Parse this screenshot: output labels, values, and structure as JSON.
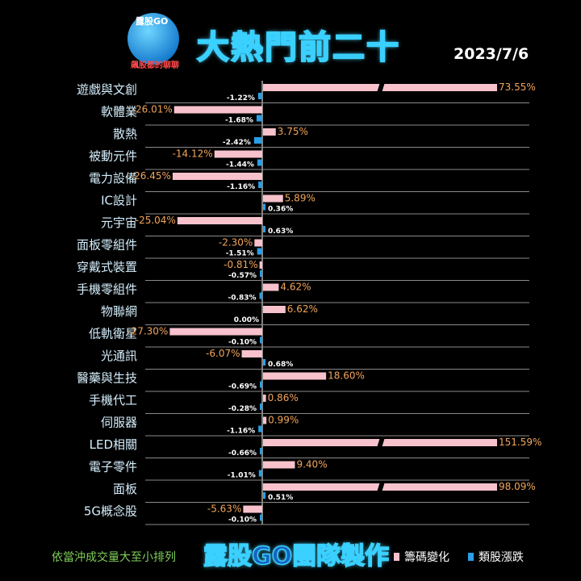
{
  "logo": {
    "top_text": "露股GO",
    "bottom_text": "飆股都的聊聊"
  },
  "title": "大熱門前二十",
  "date": "2023/7/6",
  "footer": {
    "note": "依當沖成交量大至小排列",
    "brand": "露股GO團隊製作"
  },
  "colors": {
    "chip": "#f7c2cc",
    "stock": "#2a9fe6",
    "chip_label": "#f2a55a",
    "category_label": "#d4eefc"
  },
  "chart_data": {
    "type": "bar",
    "categories": [
      "遊戲與文創",
      "軟體業",
      "散熱",
      "被動元件",
      "電力設備",
      "IC設計",
      "元宇宙",
      "面板零組件",
      "穿戴式裝置",
      "手機零組件",
      "物聯網",
      "低軌衛星",
      "光通訊",
      "醫藥與生技",
      "手機代工",
      "伺服器",
      "LED相關",
      "電子零件",
      "面板",
      "5G概念股"
    ],
    "series": [
      {
        "name": "籌碼變化",
        "values": [
          73.55,
          -26.01,
          3.75,
          -14.12,
          -26.45,
          5.89,
          -25.04,
          -2.3,
          -0.81,
          4.62,
          6.62,
          -27.3,
          -6.07,
          18.6,
          0.86,
          0.99,
          151.59,
          9.4,
          98.09,
          -5.63
        ],
        "labels": [
          "73.55%",
          "-26.01%",
          "3.75%",
          "-14.12%",
          "-26.45%",
          "5.89%",
          "-25.04%",
          "-2.30%",
          "-0.81%",
          "4.62%",
          "6.62%",
          "-27.30%",
          "-6.07%",
          "18.60%",
          "0.86%",
          "0.99%",
          "151.59%",
          "9.40%",
          "98.09%",
          "-5.63%"
        ]
      },
      {
        "name": "類股漲跌",
        "values": [
          -1.22,
          -1.68,
          -2.42,
          -1.44,
          -1.16,
          0.36,
          0.63,
          -1.51,
          -0.57,
          -0.83,
          0.0,
          -0.1,
          0.68,
          -0.69,
          -0.28,
          -1.16,
          -0.66,
          -1.01,
          0.51,
          -0.1
        ],
        "labels": [
          "-1.22%",
          "-1.68%",
          "-2.42%",
          "-1.44%",
          "-1.16%",
          "0.36%",
          "0.63%",
          "-1.51%",
          "-0.57%",
          "-0.83%",
          "0.00%",
          "-0.10%",
          "0.68%",
          "-0.69%",
          "-0.28%",
          "-1.16%",
          "-0.66%",
          "-1.01%",
          "0.51%",
          "-0.10%"
        ]
      }
    ],
    "axis_breaks": [
      "遊戲與文創",
      "LED相關",
      "面板"
    ],
    "grid": true,
    "legend_position": "bottom-right"
  }
}
